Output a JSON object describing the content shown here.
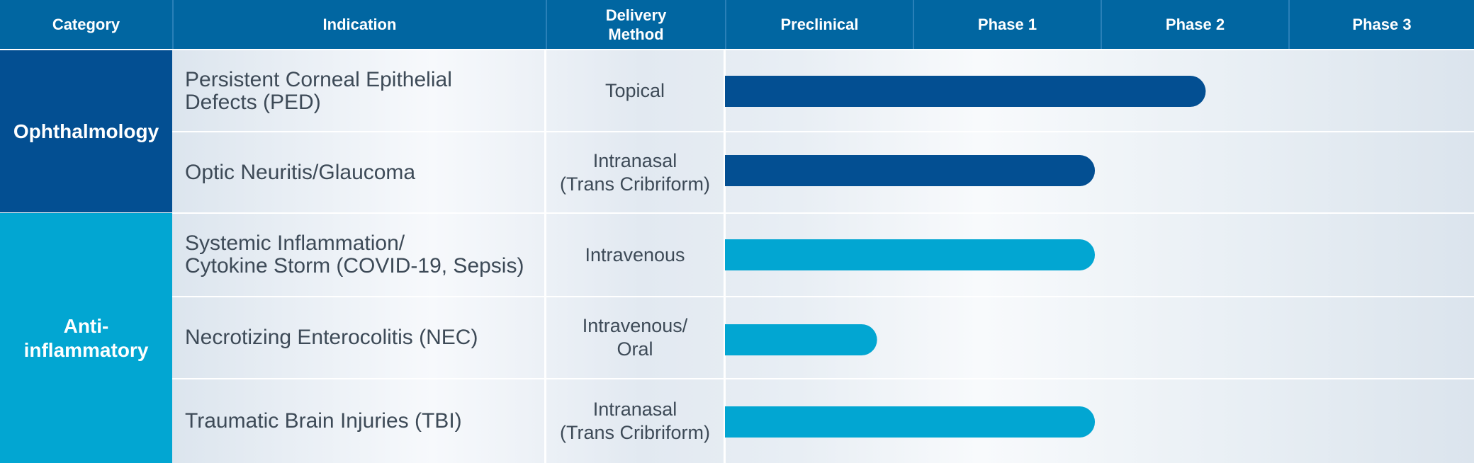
{
  "chart_data": {
    "type": "bar",
    "orientation": "horizontal",
    "headers": {
      "category": "Category",
      "indication": "Indication",
      "delivery": "Delivery\nMethod"
    },
    "phases": [
      "Preclinical",
      "Phase 1",
      "Phase 2",
      "Phase 3"
    ],
    "groups": [
      {
        "name": "Ophthalmology",
        "color": "#034f92",
        "rows": [
          0,
          1
        ]
      },
      {
        "name": "Anti-\ninflammatory",
        "color": "#02a6d2",
        "rows": [
          2,
          3,
          4
        ]
      }
    ],
    "rows": [
      {
        "indication": "Persistent Corneal Epithelial\nDefects (PED)",
        "delivery": "Topical",
        "progress": 2.56,
        "color": "#034f92"
      },
      {
        "indication": "Optic Neuritis/Glaucoma",
        "delivery": "Intranasal\n(Trans Cribriform)",
        "progress": 1.97,
        "color": "#034f92"
      },
      {
        "indication": "Systemic Inflammation/\nCytokine Storm (COVID-19, Sepsis)",
        "delivery": "Intravenous",
        "progress": 1.97,
        "color": "#02a6d2"
      },
      {
        "indication": "Necrotizing Enterocolitis (NEC)",
        "delivery": "Intravenous/\nOral",
        "progress": 0.81,
        "color": "#02a6d2"
      },
      {
        "indication": "Traumatic Brain Injuries (TBI)",
        "delivery": "Intranasal\n(Trans Cribriform)",
        "progress": 1.97,
        "color": "#02a6d2"
      }
    ],
    "xlim": [
      0,
      4
    ],
    "xunit": "development phases completed"
  }
}
